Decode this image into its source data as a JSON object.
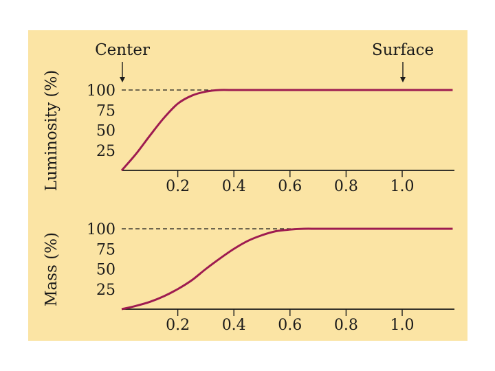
{
  "colors": {
    "background": "#fbe4a4",
    "curve": "#9e1b50",
    "ink": "#1a1a1a"
  },
  "annotations": {
    "center": "Center",
    "surface": "Surface"
  },
  "chart_data": [
    {
      "type": "line",
      "ylabel": "Luminosity (%)",
      "xlabel": "",
      "xlim": [
        0,
        1.18
      ],
      "ylim": [
        0,
        100
      ],
      "xticks": [
        0.2,
        0.4,
        0.6,
        0.8,
        1.0
      ],
      "xtick_labels": [
        "0.2",
        "0.4",
        "0.6",
        "0.8",
        "1.0"
      ],
      "yticks": [
        25,
        50,
        75,
        100
      ],
      "ytick_labels": [
        "25",
        "50",
        "75",
        "100"
      ],
      "reference_line": {
        "y": 100,
        "style": "dashed"
      },
      "series": [
        {
          "name": "Luminosity",
          "x": [
            0,
            0.05,
            0.1,
            0.15,
            0.2,
            0.25,
            0.3,
            0.35,
            0.4,
            0.6,
            0.8,
            1.0,
            1.18
          ],
          "y": [
            0,
            20,
            43,
            65,
            83,
            93,
            98,
            100,
            100,
            100,
            100,
            100,
            100
          ]
        }
      ]
    },
    {
      "type": "line",
      "ylabel": "Mass (%)",
      "xlabel": "",
      "xlim": [
        0,
        1.18
      ],
      "ylim": [
        0,
        100
      ],
      "xticks": [
        0.2,
        0.4,
        0.6,
        0.8,
        1.0
      ],
      "xtick_labels": [
        "0.2",
        "0.4",
        "0.6",
        "0.8",
        "1.0"
      ],
      "yticks": [
        25,
        50,
        75,
        100
      ],
      "ytick_labels": [
        "25",
        "50",
        "75",
        "100"
      ],
      "reference_line": {
        "y": 100,
        "style": "dashed"
      },
      "series": [
        {
          "name": "Mass",
          "x": [
            0,
            0.05,
            0.1,
            0.15,
            0.2,
            0.25,
            0.3,
            0.35,
            0.4,
            0.45,
            0.5,
            0.55,
            0.6,
            0.65,
            0.7,
            0.8,
            1.0,
            1.18
          ],
          "y": [
            0,
            4,
            9,
            16,
            25,
            36,
            50,
            63,
            75,
            85,
            92,
            97,
            99,
            100,
            100,
            100,
            100,
            100
          ]
        }
      ]
    }
  ]
}
